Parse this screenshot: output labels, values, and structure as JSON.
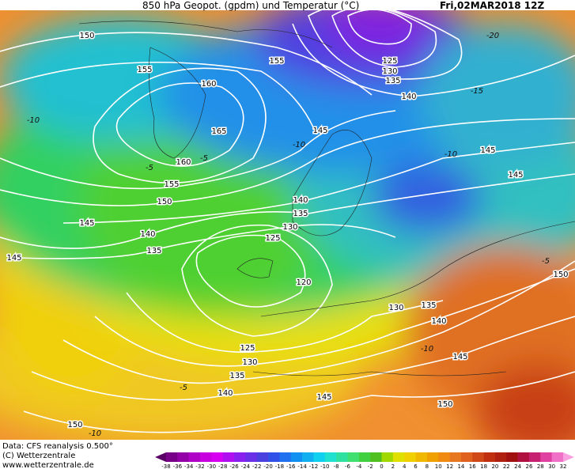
{
  "header": {
    "title": "850 hPa Geopot. (gpdm) und Temperatur (°C)",
    "date": "Fri,02MAR2018 12Z"
  },
  "footer": {
    "source": "Data: CFS reanalysis 0.500°",
    "copyright": "(C) Wetterzentrale",
    "website": "www.wetterzentrale.de"
  },
  "isobar_labels": [
    "150",
    "155",
    "155",
    "160",
    "165",
    "160",
    "155",
    "150",
    "145",
    "140",
    "135",
    "145",
    "125",
    "130",
    "135",
    "140",
    "145",
    "125",
    "130",
    "135",
    "140",
    "145",
    "145",
    "150",
    "130",
    "135",
    "140",
    "145",
    "150",
    "145",
    "140",
    "135",
    "130",
    "125",
    "120",
    "150"
  ],
  "temperature_labels": [
    "-20",
    "-15",
    "-10",
    "-5",
    "-10",
    "-10",
    "-5",
    "-5",
    "-10",
    "-5",
    "-10"
  ],
  "colorbar": {
    "labels": [
      "-38",
      "-36",
      "-34",
      "-32",
      "-30",
      "-28",
      "-26",
      "-24",
      "-22",
      "-20",
      "-18",
      "-16",
      "-14",
      "-12",
      "-10",
      "-8",
      "-6",
      "-4",
      "-2",
      "0",
      "2",
      "4",
      "6",
      "8",
      "10",
      "12",
      "14",
      "16",
      "18",
      "20",
      "22",
      "24",
      "26",
      "28",
      "30",
      "32"
    ],
    "colors": [
      "#5a0064",
      "#780088",
      "#9400a8",
      "#b000c8",
      "#c800e0",
      "#d800f0",
      "#b010f0",
      "#8a20f0",
      "#6a30e8",
      "#4a40e0",
      "#3050e8",
      "#2070f0",
      "#1090f0",
      "#10b0f0",
      "#10d0f0",
      "#20e0d0",
      "#30e0a0",
      "#40e070",
      "#40d040",
      "#50c020",
      "#a0d800",
      "#e0e000",
      "#f0d000",
      "#f0b800",
      "#f0a000",
      "#f08a10",
      "#e87820",
      "#e06020",
      "#d04818",
      "#c03010",
      "#b02010",
      "#a01010",
      "#b01040",
      "#c82070",
      "#e040a0",
      "#f070c8",
      "#f8a0e0"
    ]
  }
}
